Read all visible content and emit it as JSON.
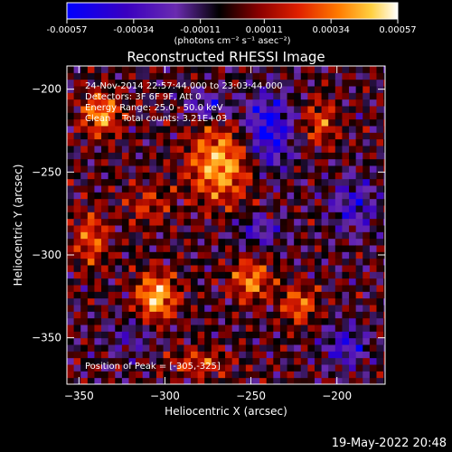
{
  "colorbar": {
    "tick_labels": [
      "-0.00057",
      "-0.00034",
      "-0.00011",
      "0.00011",
      "0.00034",
      "0.00057"
    ],
    "tick_values": [
      -0.00057,
      -0.00034,
      -0.00011,
      0.00011,
      0.00034,
      0.00057
    ],
    "range": [
      -0.00057,
      0.00057
    ],
    "unit_label": "(photons cm⁻² s⁻¹ asec⁻²)"
  },
  "footer": {
    "timestamp": "19-May-2022 20:48"
  },
  "chart_data": {
    "type": "heatmap",
    "title": "Reconstructed RHESSI Image",
    "xlabel": "Heliocentric X (arcsec)",
    "ylabel": "Heliocentric Y (arcsec)",
    "xlim": [
      -357,
      -172
    ],
    "ylim": [
      -378,
      -186
    ],
    "x_ticks": [
      -350,
      -300,
      -250,
      -200
    ],
    "x_tick_labels": [
      "−350",
      "−300",
      "−250",
      "−200"
    ],
    "y_ticks": [
      -200,
      -250,
      -300,
      -350
    ],
    "y_tick_labels": [
      "−200",
      "−250",
      "−300",
      "−350"
    ],
    "annotations": [
      "24-Nov-2014 22:57:44.000 to 23:03:44.000",
      "Detectors: 3F 6F 9F, Att 0",
      "Energy Range: 25.0 - 50.0 keV",
      "Clean    Total counts: 3.21E+03"
    ],
    "peak_label": "Position of Peak = [-305,-325]",
    "peak": {
      "x": -305,
      "y": -325
    },
    "colormap": [
      "#0000ff",
      "#3a00c0",
      "#6a2bb0",
      "#000000",
      "#8a0000",
      "#e02000",
      "#ff7a00",
      "#ffd040",
      "#ffffff"
    ],
    "blobs": [
      {
        "x": -268,
        "y": -245,
        "sx": 13,
        "sy": 16,
        "v": 0.0005
      },
      {
        "x": -305,
        "y": -325,
        "sx": 8,
        "sy": 10,
        "v": 0.00054
      },
      {
        "x": -337,
        "y": -215,
        "sx": 8,
        "sy": 9,
        "v": 0.00044
      },
      {
        "x": -343,
        "y": -290,
        "sx": 7,
        "sy": 12,
        "v": 0.00032
      },
      {
        "x": -250,
        "y": -315,
        "sx": 8,
        "sy": 9,
        "v": 0.0004
      },
      {
        "x": -222,
        "y": -330,
        "sx": 7,
        "sy": 8,
        "v": 0.00036
      },
      {
        "x": -210,
        "y": -220,
        "sx": 7,
        "sy": 10,
        "v": 0.0003
      },
      {
        "x": -310,
        "y": -270,
        "sx": 9,
        "sy": 9,
        "v": 0.00022
      },
      {
        "x": -280,
        "y": -365,
        "sx": 12,
        "sy": 6,
        "v": 0.00026
      },
      {
        "x": -240,
        "y": -225,
        "sx": 10,
        "sy": 16,
        "v": -0.00045
      },
      {
        "x": -275,
        "y": -210,
        "sx": 9,
        "sy": 6,
        "v": -0.0003
      },
      {
        "x": -190,
        "y": -270,
        "sx": 10,
        "sy": 12,
        "v": -0.00028
      },
      {
        "x": -245,
        "y": -285,
        "sx": 10,
        "sy": 7,
        "v": -0.00025
      },
      {
        "x": -195,
        "y": -355,
        "sx": 9,
        "sy": 9,
        "v": -0.0003
      },
      {
        "x": -320,
        "y": -350,
        "sx": 10,
        "sy": 8,
        "v": -0.00018
      }
    ]
  }
}
